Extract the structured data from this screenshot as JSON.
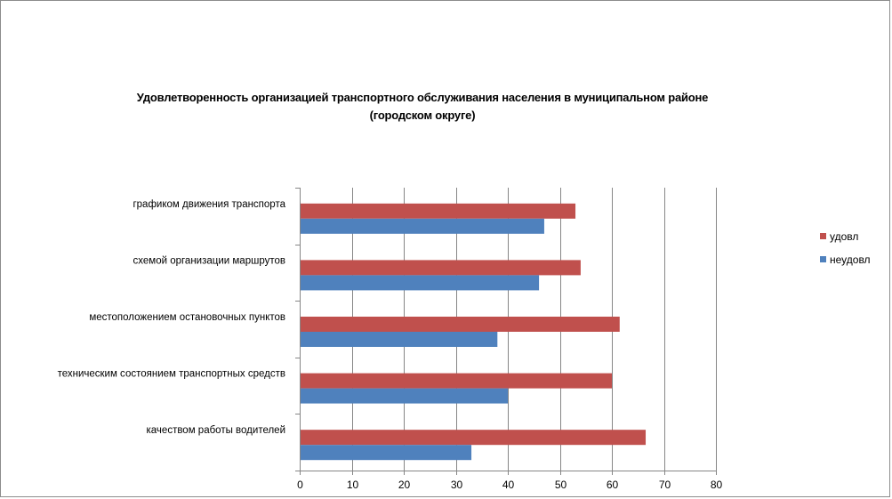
{
  "chart_data": {
    "type": "bar",
    "orientation": "horizontal",
    "title_lines": [
      "Удовлетворенность организацией транспортного обслуживания населения в муниципальном районе",
      "(городском округе)"
    ],
    "categories": [
      "графиком движения транспорта",
      "схемой организации маршрутов",
      "местоположением  остановочных пунктов",
      "техническим состоянием транспортных средств",
      "качеством работы водителей"
    ],
    "series": [
      {
        "name": "удовл",
        "color": "#c0504d",
        "values": [
          53,
          54,
          61.5,
          60,
          66.5
        ]
      },
      {
        "name": "неудовл",
        "color": "#4f81bd",
        "values": [
          47,
          46,
          38,
          40,
          33
        ]
      }
    ],
    "x_ticks": [
      "0",
      "10",
      "20",
      "30",
      "40",
      "50",
      "60",
      "70",
      "80"
    ],
    "xlim": [
      0,
      80
    ],
    "grid": true,
    "legend_position": "right"
  }
}
